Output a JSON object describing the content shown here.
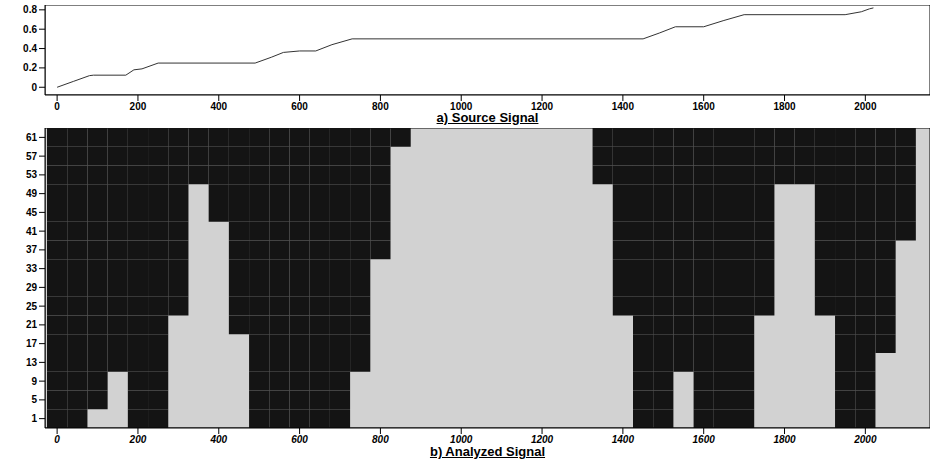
{
  "chart_data": [
    {
      "type": "line",
      "title": "a) Source Signal",
      "color": "#333333",
      "x": [
        0,
        40,
        80,
        90,
        170,
        190,
        210,
        250,
        490,
        530,
        560,
        600,
        640,
        680,
        730,
        1450,
        1490,
        1530,
        1600,
        1650,
        1700,
        1950,
        1990,
        2010,
        2020
      ],
      "values": [
        0,
        0.06,
        0.12,
        0.125,
        0.125,
        0.18,
        0.19,
        0.25,
        0.25,
        0.31,
        0.36,
        0.375,
        0.375,
        0.44,
        0.5,
        0.5,
        0.56,
        0.625,
        0.625,
        0.69,
        0.75,
        0.75,
        0.78,
        0.81,
        0.82
      ],
      "xlim": [
        -30,
        2160
      ],
      "xticks": [
        0,
        200,
        400,
        600,
        800,
        1000,
        1200,
        1400,
        1600,
        1800,
        2000
      ],
      "ylim": [
        -0.08,
        0.85
      ],
      "yticks": [
        0,
        0.2,
        0.4,
        0.6,
        0.8
      ]
    },
    {
      "type": "heatmap",
      "title": "b) Analyzed Signal",
      "color": "#141414",
      "x": [
        0,
        50,
        100,
        150,
        200,
        250,
        300,
        350,
        400,
        450,
        500,
        550,
        600,
        650,
        700,
        750,
        800,
        850,
        900,
        950,
        1000,
        1050,
        1100,
        1150,
        1200,
        1250,
        1300,
        1350,
        1400,
        1450,
        1500,
        1550,
        1600,
        1650,
        1700,
        1750,
        1800,
        1850,
        1900,
        1950,
        2000,
        2050,
        2100,
        2150
      ],
      "y": [
        1,
        5,
        9,
        13,
        17,
        21,
        25,
        29,
        33,
        37,
        41,
        45,
        49,
        53,
        57,
        61
      ],
      "cells": [
        [
          1,
          1,
          0,
          0,
          1,
          1,
          0,
          0,
          0,
          0,
          1,
          1,
          1,
          1,
          1,
          0,
          0,
          0,
          0,
          0,
          0,
          0,
          0,
          0,
          0,
          0,
          0,
          0,
          0,
          1,
          1,
          0,
          1,
          1,
          1,
          0,
          0,
          0,
          0,
          1,
          1,
          0,
          0,
          0
        ],
        [
          1,
          1,
          1,
          0,
          1,
          1,
          0,
          0,
          0,
          0,
          1,
          1,
          1,
          1,
          1,
          0,
          0,
          0,
          0,
          0,
          0,
          0,
          0,
          0,
          0,
          0,
          0,
          0,
          0,
          1,
          1,
          0,
          1,
          1,
          1,
          0,
          0,
          0,
          0,
          1,
          1,
          0,
          0,
          0
        ],
        [
          1,
          1,
          1,
          0,
          1,
          1,
          0,
          0,
          0,
          0,
          1,
          1,
          1,
          1,
          1,
          0,
          0,
          0,
          0,
          0,
          0,
          0,
          0,
          0,
          0,
          0,
          0,
          0,
          0,
          1,
          1,
          0,
          1,
          1,
          1,
          0,
          0,
          0,
          0,
          1,
          1,
          0,
          0,
          0
        ],
        [
          1,
          1,
          1,
          1,
          1,
          1,
          0,
          0,
          0,
          0,
          1,
          1,
          1,
          1,
          1,
          1,
          0,
          0,
          0,
          0,
          0,
          0,
          0,
          0,
          0,
          0,
          0,
          0,
          0,
          1,
          1,
          1,
          1,
          1,
          1,
          0,
          0,
          0,
          0,
          1,
          1,
          0,
          0,
          0
        ],
        [
          1,
          1,
          1,
          1,
          1,
          1,
          0,
          0,
          0,
          0,
          1,
          1,
          1,
          1,
          1,
          1,
          0,
          0,
          0,
          0,
          0,
          0,
          0,
          0,
          0,
          0,
          0,
          0,
          0,
          1,
          1,
          1,
          1,
          1,
          1,
          0,
          0,
          0,
          0,
          1,
          1,
          1,
          0,
          0
        ],
        [
          1,
          1,
          1,
          1,
          1,
          1,
          0,
          0,
          0,
          1,
          1,
          1,
          1,
          1,
          1,
          1,
          0,
          0,
          0,
          0,
          0,
          0,
          0,
          0,
          0,
          0,
          0,
          0,
          0,
          1,
          1,
          1,
          1,
          1,
          1,
          0,
          0,
          0,
          0,
          1,
          1,
          1,
          0,
          0
        ],
        [
          1,
          1,
          1,
          1,
          1,
          1,
          1,
          0,
          0,
          1,
          1,
          1,
          1,
          1,
          1,
          1,
          0,
          0,
          0,
          0,
          0,
          0,
          0,
          0,
          0,
          0,
          0,
          0,
          1,
          1,
          1,
          1,
          1,
          1,
          1,
          1,
          0,
          0,
          1,
          1,
          1,
          1,
          0,
          0
        ],
        [
          1,
          1,
          1,
          1,
          1,
          1,
          1,
          0,
          0,
          1,
          1,
          1,
          1,
          1,
          1,
          1,
          0,
          0,
          0,
          0,
          0,
          0,
          0,
          0,
          0,
          0,
          0,
          0,
          1,
          1,
          1,
          1,
          1,
          1,
          1,
          1,
          0,
          0,
          1,
          1,
          1,
          1,
          0,
          0
        ],
        [
          1,
          1,
          1,
          1,
          1,
          1,
          1,
          0,
          0,
          1,
          1,
          1,
          1,
          1,
          1,
          1,
          0,
          0,
          0,
          0,
          0,
          0,
          0,
          0,
          0,
          0,
          0,
          0,
          1,
          1,
          1,
          1,
          1,
          1,
          1,
          1,
          0,
          0,
          1,
          1,
          1,
          1,
          0,
          0
        ],
        [
          1,
          1,
          1,
          1,
          1,
          1,
          1,
          0,
          0,
          1,
          1,
          1,
          1,
          1,
          1,
          1,
          1,
          0,
          0,
          0,
          0,
          0,
          0,
          0,
          0,
          0,
          0,
          0,
          1,
          1,
          1,
          1,
          1,
          1,
          1,
          1,
          0,
          0,
          1,
          1,
          1,
          1,
          0,
          0
        ],
        [
          1,
          1,
          1,
          1,
          1,
          1,
          1,
          0,
          0,
          1,
          1,
          1,
          1,
          1,
          1,
          1,
          1,
          0,
          0,
          0,
          0,
          0,
          0,
          0,
          0,
          0,
          0,
          0,
          1,
          1,
          1,
          1,
          1,
          1,
          1,
          1,
          0,
          0,
          1,
          1,
          1,
          1,
          1,
          0
        ],
        [
          1,
          1,
          1,
          1,
          1,
          1,
          1,
          0,
          1,
          1,
          1,
          1,
          1,
          1,
          1,
          1,
          1,
          0,
          0,
          0,
          0,
          0,
          0,
          0,
          0,
          0,
          0,
          0,
          1,
          1,
          1,
          1,
          1,
          1,
          1,
          1,
          0,
          0,
          1,
          1,
          1,
          1,
          1,
          0
        ],
        [
          1,
          1,
          1,
          1,
          1,
          1,
          1,
          0,
          1,
          1,
          1,
          1,
          1,
          1,
          1,
          1,
          1,
          0,
          0,
          0,
          0,
          0,
          0,
          0,
          0,
          0,
          0,
          0,
          1,
          1,
          1,
          1,
          1,
          1,
          1,
          1,
          0,
          0,
          1,
          1,
          1,
          1,
          1,
          0
        ],
        [
          1,
          1,
          1,
          1,
          1,
          1,
          1,
          1,
          1,
          1,
          1,
          1,
          1,
          1,
          1,
          1,
          1,
          0,
          0,
          0,
          0,
          0,
          0,
          0,
          0,
          0,
          0,
          1,
          1,
          1,
          1,
          1,
          1,
          1,
          1,
          1,
          1,
          1,
          1,
          1,
          1,
          1,
          1,
          0
        ],
        [
          1,
          1,
          1,
          1,
          1,
          1,
          1,
          1,
          1,
          1,
          1,
          1,
          1,
          1,
          1,
          1,
          1,
          0,
          0,
          0,
          0,
          0,
          0,
          0,
          0,
          0,
          0,
          1,
          1,
          1,
          1,
          1,
          1,
          1,
          1,
          1,
          1,
          1,
          1,
          1,
          1,
          1,
          1,
          0
        ],
        [
          1,
          1,
          1,
          1,
          1,
          1,
          1,
          1,
          1,
          1,
          1,
          1,
          1,
          1,
          1,
          1,
          1,
          1,
          0,
          0,
          0,
          0,
          0,
          0,
          0,
          0,
          0,
          1,
          1,
          1,
          1,
          1,
          1,
          1,
          1,
          1,
          1,
          1,
          1,
          1,
          1,
          1,
          1,
          0
        ]
      ],
      "xlim": [
        -30,
        2160
      ],
      "xticks": [
        0,
        200,
        400,
        600,
        800,
        1000,
        1200,
        1400,
        1600,
        1800,
        2000
      ],
      "ylim": [
        -1,
        63
      ],
      "yticks": [
        1,
        5,
        9,
        13,
        17,
        21,
        25,
        29,
        33,
        37,
        41,
        45,
        49,
        53,
        57,
        61
      ]
    }
  ]
}
